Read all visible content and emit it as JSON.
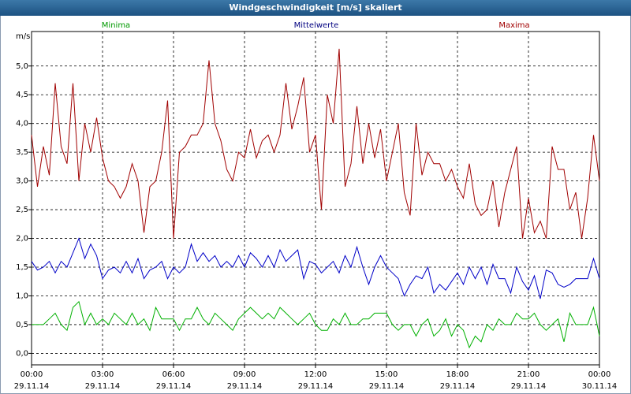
{
  "chart_data": {
    "type": "line",
    "title": "Windgeschwindigkeit [m/s] skaliert",
    "ylabel": "m/s",
    "x": [
      0,
      0.25,
      0.5,
      0.75,
      1,
      1.25,
      1.5,
      1.75,
      2,
      2.25,
      2.5,
      2.75,
      3,
      3.25,
      3.5,
      3.75,
      4,
      4.25,
      4.5,
      4.75,
      5,
      5.25,
      5.5,
      5.75,
      6,
      6.25,
      6.5,
      6.75,
      7,
      7.25,
      7.5,
      7.75,
      8,
      8.25,
      8.5,
      8.75,
      9,
      9.25,
      9.5,
      9.75,
      10,
      10.25,
      10.5,
      10.75,
      11,
      11.25,
      11.5,
      11.75,
      12,
      12.25,
      12.5,
      12.75,
      13,
      13.25,
      13.5,
      13.75,
      14,
      14.25,
      14.5,
      14.75,
      15,
      15.25,
      15.5,
      15.75,
      16,
      16.25,
      16.5,
      16.75,
      17,
      17.25,
      17.5,
      17.75,
      18,
      18.25,
      18.5,
      18.75,
      19,
      19.25,
      19.5,
      19.75,
      20,
      20.25,
      20.5,
      20.75,
      21,
      21.25,
      21.5,
      21.75,
      22,
      22.25,
      22.5,
      22.75,
      23,
      23.25,
      23.5,
      23.75,
      24
    ],
    "series": [
      {
        "name": "Minima",
        "color": "#00b000",
        "label_color": "#009900",
        "values": [
          0.5,
          0.5,
          0.5,
          0.6,
          0.7,
          0.5,
          0.4,
          0.8,
          0.9,
          0.5,
          0.7,
          0.5,
          0.6,
          0.5,
          0.7,
          0.6,
          0.5,
          0.7,
          0.5,
          0.6,
          0.4,
          0.8,
          0.6,
          0.6,
          0.6,
          0.4,
          0.6,
          0.6,
          0.8,
          0.6,
          0.5,
          0.7,
          0.6,
          0.5,
          0.4,
          0.6,
          0.7,
          0.8,
          0.7,
          0.6,
          0.7,
          0.6,
          0.8,
          0.7,
          0.6,
          0.5,
          0.6,
          0.7,
          0.5,
          0.4,
          0.4,
          0.6,
          0.5,
          0.7,
          0.5,
          0.5,
          0.6,
          0.6,
          0.7,
          0.7,
          0.7,
          0.5,
          0.4,
          0.5,
          0.5,
          0.3,
          0.5,
          0.6,
          0.3,
          0.4,
          0.6,
          0.3,
          0.5,
          0.4,
          0.1,
          0.3,
          0.2,
          0.5,
          0.4,
          0.6,
          0.5,
          0.5,
          0.7,
          0.6,
          0.6,
          0.7,
          0.5,
          0.4,
          0.5,
          0.6,
          0.2,
          0.7,
          0.5,
          0.5,
          0.5,
          0.8,
          0.3
        ]
      },
      {
        "name": "Mittelwerte",
        "color": "#0000c8",
        "label_color": "#000080",
        "values": [
          1.6,
          1.45,
          1.5,
          1.6,
          1.4,
          1.6,
          1.5,
          1.75,
          2.0,
          1.65,
          1.9,
          1.7,
          1.3,
          1.45,
          1.5,
          1.4,
          1.6,
          1.4,
          1.65,
          1.3,
          1.45,
          1.5,
          1.6,
          1.3,
          1.5,
          1.4,
          1.5,
          1.9,
          1.6,
          1.75,
          1.6,
          1.7,
          1.5,
          1.6,
          1.5,
          1.7,
          1.5,
          1.75,
          1.65,
          1.5,
          1.7,
          1.5,
          1.8,
          1.6,
          1.7,
          1.8,
          1.3,
          1.6,
          1.55,
          1.4,
          1.5,
          1.6,
          1.4,
          1.7,
          1.5,
          1.85,
          1.5,
          1.2,
          1.5,
          1.7,
          1.5,
          1.4,
          1.3,
          1.0,
          1.2,
          1.35,
          1.3,
          1.5,
          1.05,
          1.2,
          1.1,
          1.25,
          1.4,
          1.2,
          1.5,
          1.3,
          1.5,
          1.2,
          1.55,
          1.3,
          1.3,
          1.05,
          1.5,
          1.25,
          1.1,
          1.35,
          0.95,
          1.45,
          1.4,
          1.2,
          1.15,
          1.2,
          1.3,
          1.3,
          1.3,
          1.65,
          1.3
        ]
      },
      {
        "name": "Maxima",
        "color": "#a00000",
        "label_color": "#a00000",
        "values": [
          3.8,
          2.9,
          3.6,
          3.1,
          4.7,
          3.6,
          3.3,
          4.7,
          3.0,
          4.0,
          3.5,
          4.1,
          3.4,
          3.0,
          2.9,
          2.7,
          2.9,
          3.3,
          3.0,
          2.1,
          2.9,
          3.0,
          3.5,
          4.4,
          2.0,
          3.5,
          3.6,
          3.8,
          3.8,
          4.0,
          5.1,
          4.0,
          3.7,
          3.2,
          3.0,
          3.5,
          3.4,
          3.9,
          3.4,
          3.7,
          3.8,
          3.5,
          3.8,
          4.7,
          3.9,
          4.3,
          4.8,
          3.5,
          3.8,
          2.5,
          4.5,
          4.0,
          5.3,
          2.9,
          3.3,
          4.3,
          3.3,
          4.0,
          3.4,
          3.9,
          3.0,
          3.5,
          4.0,
          2.8,
          2.4,
          4.0,
          3.1,
          3.5,
          3.3,
          3.3,
          3.0,
          3.2,
          2.9,
          2.7,
          3.3,
          2.6,
          2.4,
          2.5,
          3.0,
          2.2,
          2.8,
          3.2,
          3.6,
          2.0,
          2.7,
          2.1,
          2.3,
          2.0,
          3.6,
          3.2,
          3.2,
          2.5,
          2.8,
          2.0,
          2.7,
          3.8,
          3.0
        ]
      }
    ],
    "xlim": [
      0,
      24
    ],
    "xticks": [
      {
        "value": 0,
        "label": "00:00",
        "date": "29.11.14"
      },
      {
        "value": 3,
        "label": "03:00",
        "date": "29.11.14"
      },
      {
        "value": 6,
        "label": "06:00",
        "date": "29.11.14"
      },
      {
        "value": 9,
        "label": "09:00",
        "date": "29.11.14"
      },
      {
        "value": 12,
        "label": "12:00",
        "date": "29.11.14"
      },
      {
        "value": 15,
        "label": "15:00",
        "date": "29.11.14"
      },
      {
        "value": 18,
        "label": "18:00",
        "date": "29.11.14"
      },
      {
        "value": 21,
        "label": "21:00",
        "date": "29.11.14"
      },
      {
        "value": 24,
        "label": "00:00",
        "date": "30.11.14"
      }
    ],
    "ylim": [
      -0.2,
      5.6
    ],
    "yticks": [
      {
        "value": 0,
        "label": "0,0"
      },
      {
        "value": 0.5,
        "label": "0,5"
      },
      {
        "value": 1,
        "label": "1,0"
      },
      {
        "value": 1.5,
        "label": "1,5"
      },
      {
        "value": 2,
        "label": "2,0"
      },
      {
        "value": 2.5,
        "label": "2,5"
      },
      {
        "value": 3,
        "label": "3,0"
      },
      {
        "value": 3.5,
        "label": "3,5"
      },
      {
        "value": 4,
        "label": "4,0"
      },
      {
        "value": 4.5,
        "label": "4,5"
      },
      {
        "value": 5,
        "label": "5,0"
      }
    ],
    "grid": true
  }
}
